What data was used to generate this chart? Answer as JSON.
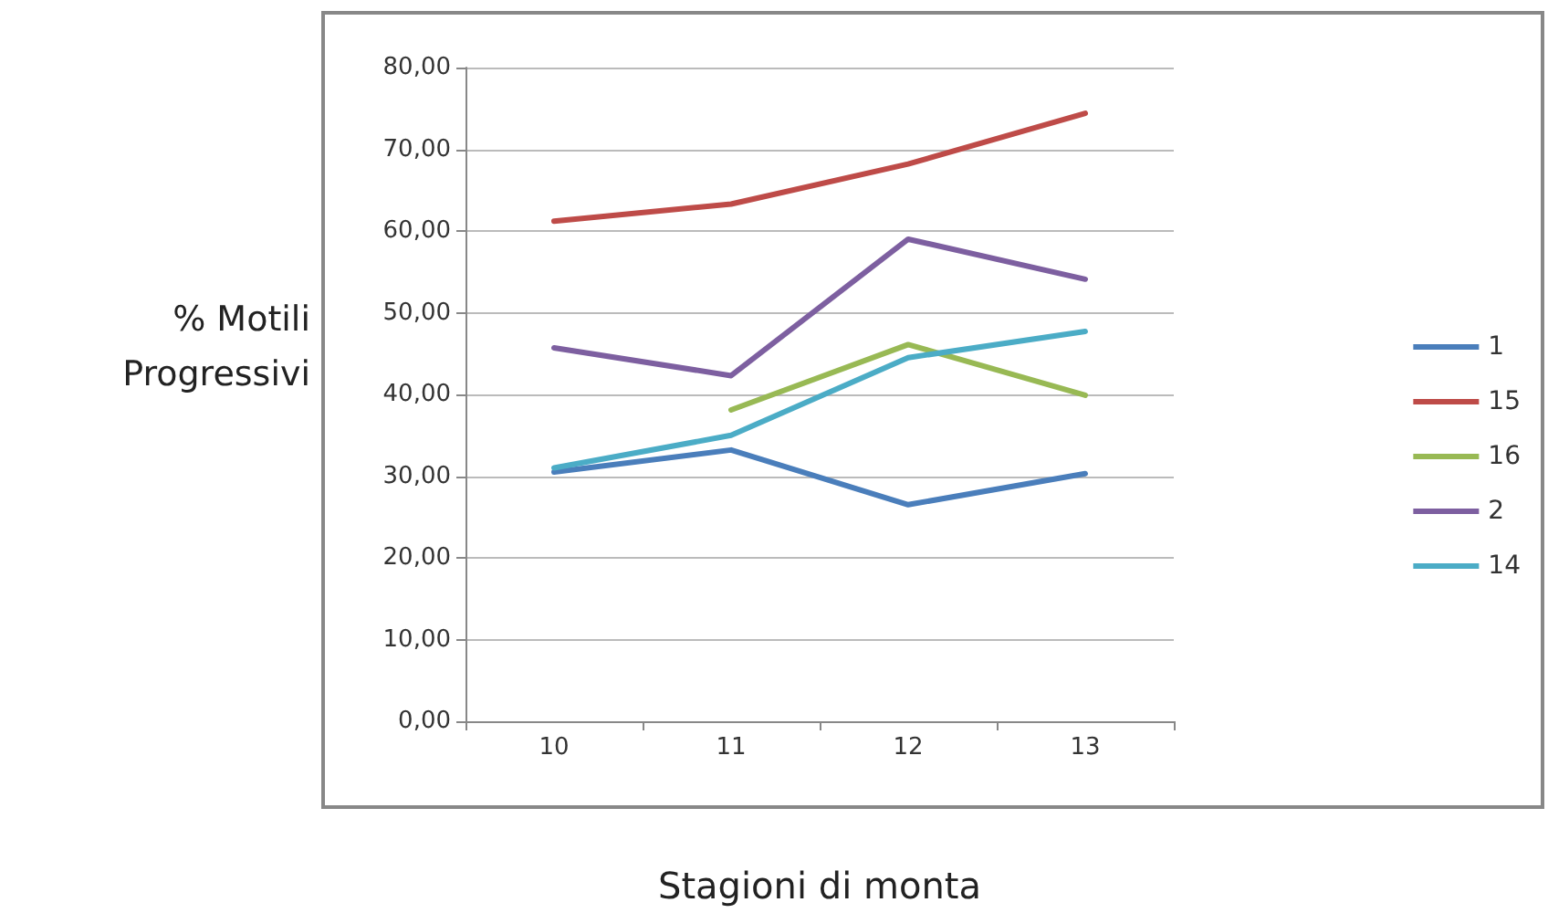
{
  "chart_data": {
    "type": "line",
    "xlabel": "Stagioni di monta",
    "ylabel": "% Motili Progressivi",
    "categories": [
      "10",
      "11",
      "12",
      "13"
    ],
    "series": [
      {
        "name": "1",
        "color": "#4a7ebb",
        "values": [
          30.5,
          33.2,
          26.5,
          30.3
        ]
      },
      {
        "name": "15",
        "color": "#be4b48",
        "values": [
          61.2,
          63.3,
          68.2,
          74.4
        ]
      },
      {
        "name": "16",
        "color": "#98b954",
        "values": [
          null,
          38.1,
          46.1,
          39.9
        ]
      },
      {
        "name": "2",
        "color": "#7d5fa0",
        "values": [
          45.7,
          42.3,
          59.0,
          54.1
        ]
      },
      {
        "name": "14",
        "color": "#4bacc6",
        "values": [
          31.0,
          35.0,
          44.5,
          47.7
        ]
      }
    ],
    "ylim": [
      0,
      80
    ],
    "yticks": [
      {
        "value": 0,
        "label": "0,00"
      },
      {
        "value": 10,
        "label": "10,00"
      },
      {
        "value": 20,
        "label": "20,00"
      },
      {
        "value": 30,
        "label": "30,00"
      },
      {
        "value": 40,
        "label": "40,00"
      },
      {
        "value": 50,
        "label": "50,00"
      },
      {
        "value": 60,
        "label": "60,00"
      },
      {
        "value": 70,
        "label": "70,00"
      },
      {
        "value": 80,
        "label": "80,00"
      }
    ],
    "grid": "y",
    "legend": "right",
    "marker": "none",
    "line_style": "solid"
  }
}
